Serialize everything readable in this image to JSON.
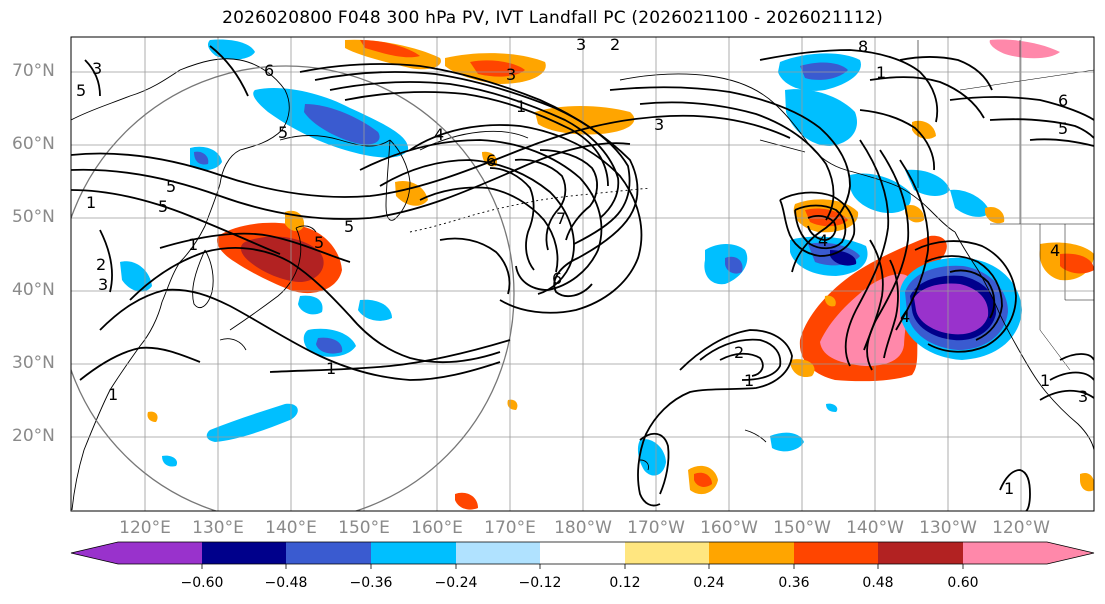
{
  "title": "2026020800 F048 300 hPa PV, IVT Landfall PC (2026021100 - 2026021112)",
  "lat_labels": [
    "70°N",
    "60°N",
    "50°N",
    "40°N",
    "30°N",
    "20°N"
  ],
  "lon_labels": [
    "120°E",
    "130°E",
    "140°E",
    "150°E",
    "160°E",
    "170°E",
    "180°W",
    "170°W",
    "160°W",
    "150°W",
    "140°W",
    "130°W",
    "120°W"
  ],
  "colorbar": {
    "ticks": [
      "−0.60",
      "−0.48",
      "−0.36",
      "−0.24",
      "−0.12",
      "0.12",
      "0.24",
      "0.36",
      "0.48",
      "0.60"
    ],
    "colors": [
      "#9932cc",
      "#00008b",
      "#3a5bd0",
      "#00bfff",
      "#b0e2ff",
      "#ffffff",
      "#ffe680",
      "#ffa500",
      "#ff4500",
      "#b22222",
      "#ff88aa"
    ]
  },
  "contour_labels": [
    "3",
    "3",
    "5",
    "6",
    "2",
    "3",
    "8",
    "1",
    "6",
    "5",
    "1",
    "3",
    "1",
    "4",
    "5",
    "6",
    "5",
    "1",
    "5",
    "1",
    "5",
    "1",
    "5",
    "6",
    "7",
    "4",
    "4",
    "4",
    "3",
    "3",
    "2",
    "1",
    "1",
    "2",
    "1"
  ],
  "colors": {
    "contour": "#000000",
    "coast": "#000000",
    "grid": "#9a9a9a",
    "circle": "#777777"
  }
}
